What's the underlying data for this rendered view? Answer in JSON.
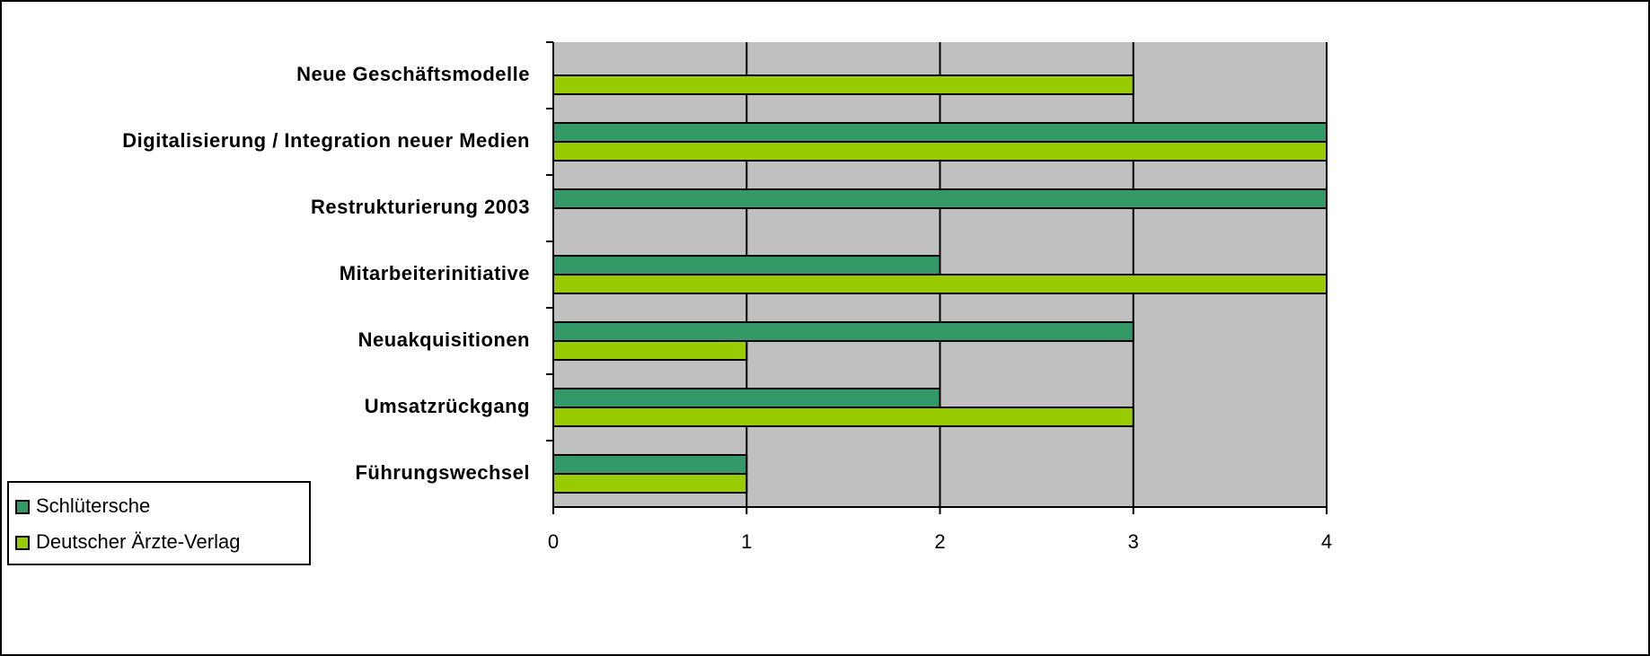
{
  "chart_data": {
    "type": "hbar",
    "categories": [
      "Neue Geschäftsmodelle",
      "Digitalisierung / Integration neuer Medien",
      "Restrukturierung 2003",
      "Mitarbeiterinitiative",
      "Neuakquisitionen",
      "Umsatzrückgang",
      "Führungswechsel"
    ],
    "series": [
      {
        "name": "Schlütersche",
        "color": "#339966",
        "values": [
          0,
          4,
          4,
          2,
          3,
          2,
          1
        ]
      },
      {
        "name": "Deutscher Ärzte-Verlag",
        "color": "#99cc00",
        "values": [
          3,
          4,
          0,
          4,
          1,
          3,
          1
        ]
      }
    ],
    "xlim": [
      0,
      4
    ],
    "xticks": [
      0,
      1,
      2,
      3,
      4
    ],
    "grid": true,
    "legend": "lower-left"
  }
}
